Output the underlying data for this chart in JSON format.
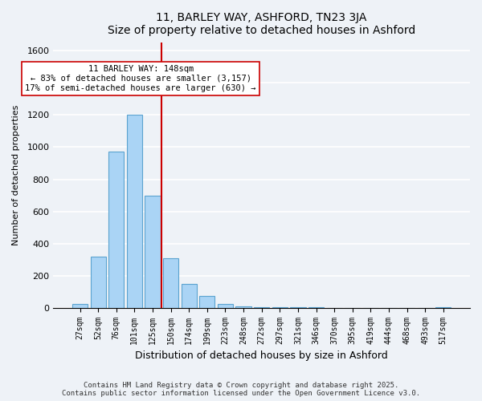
{
  "title": "11, BARLEY WAY, ASHFORD, TN23 3JA",
  "subtitle": "Size of property relative to detached houses in Ashford",
  "xlabel": "Distribution of detached houses by size in Ashford",
  "ylabel": "Number of detached properties",
  "bar_labels": [
    "27sqm",
    "52sqm",
    "76sqm",
    "101sqm",
    "125sqm",
    "150sqm",
    "174sqm",
    "199sqm",
    "223sqm",
    "248sqm",
    "272sqm",
    "297sqm",
    "321sqm",
    "346sqm",
    "370sqm",
    "395sqm",
    "419sqm",
    "444sqm",
    "468sqm",
    "493sqm",
    "517sqm"
  ],
  "bar_values": [
    25,
    320,
    970,
    1200,
    700,
    310,
    150,
    75,
    25,
    10,
    5,
    2,
    1,
    1,
    0,
    0,
    0,
    0,
    0,
    0,
    2
  ],
  "bar_color": "#aad4f5",
  "bar_edge_color": "#5ba3d0",
  "vline_color": "#cc0000",
  "annotation_title": "11 BARLEY WAY: 148sqm",
  "annotation_line1": "← 83% of detached houses are smaller (3,157)",
  "annotation_line2": "17% of semi-detached houses are larger (630) →",
  "annotation_box_color": "#ffffff",
  "annotation_box_edge": "#cc0000",
  "ylim": [
    0,
    1650
  ],
  "yticks": [
    0,
    200,
    400,
    600,
    800,
    1000,
    1200,
    1400,
    1600
  ],
  "footnote1": "Contains HM Land Registry data © Crown copyright and database right 2025.",
  "footnote2": "Contains public sector information licensed under the Open Government Licence v3.0.",
  "bg_color": "#eef2f7",
  "grid_color": "#ffffff"
}
